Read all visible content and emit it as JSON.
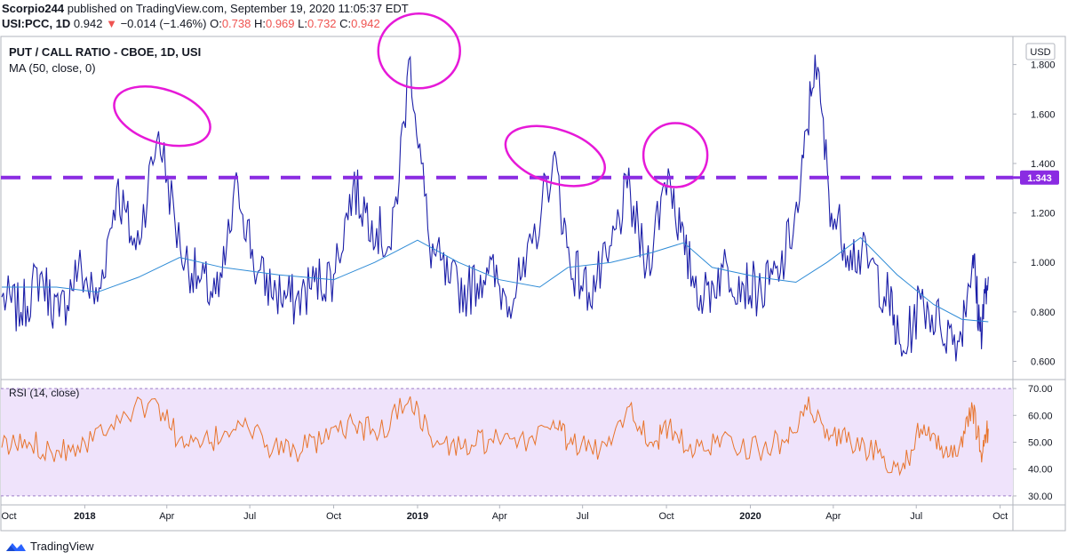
{
  "header": {
    "author": "Scorpio244",
    "published_text": "published on TradingView.com, September 19, 2020 11:05:37 EDT",
    "symbol": "USI:PCC, 1D",
    "last": "0.942",
    "change_arrow": "▼",
    "change": "−0.014 (−1.46%)",
    "o_label": "O:",
    "o_value": "0.738",
    "h_label": "H:",
    "h_value": "0.969",
    "l_label": "L:",
    "l_value": "0.732",
    "c_label": "C:",
    "c_value": "0.942"
  },
  "footer": {
    "brand": "TradingView"
  },
  "colors": {
    "price_line": "#1c1fa8",
    "ma_line": "#2e8bd6",
    "rsi_line": "#e8742c",
    "rsi_band": "#efe3fb",
    "resistance": "#8a2be2",
    "circle": "#e619d8",
    "down": "#ef5350"
  },
  "chart_data": [
    {
      "type": "line",
      "title": "PUT / CALL RATIO - CBOE, 1D, USI",
      "indicator_label": "MA (50, close, 0)",
      "currency_badge": "USD",
      "y_ticks": [
        "1.800",
        "1.600",
        "1.400",
        "1.200",
        "1.000",
        "0.800",
        "0.600"
      ],
      "ylim": [
        0.53,
        1.91
      ],
      "x_ticks": [
        "Oct",
        "2018",
        "Apr",
        "Jul",
        "Oct",
        "2019",
        "Apr",
        "Jul",
        "Oct",
        "2020",
        "Apr",
        "Jul",
        "Oct"
      ],
      "xlim": [
        "2017-10-01",
        "2020-10-15"
      ],
      "resistance_level": 1.343,
      "resistance_label": "1.343",
      "highlighted_peaks": [
        {
          "date": "2018-03-23",
          "value": 1.53
        },
        {
          "date": "2018-12-24",
          "value": 1.83
        },
        {
          "date": "2019-05-30",
          "value": 1.43
        },
        {
          "date": "2019-10-03",
          "value": 1.38
        }
      ],
      "series": [
        {
          "kind": "price",
          "points": [
            [
              "2017-10-02",
              0.86
            ],
            [
              "2017-10-23",
              0.8
            ],
            [
              "2017-11-13",
              0.95
            ],
            [
              "2017-12-04",
              0.78
            ],
            [
              "2017-12-25",
              0.98
            ],
            [
              "2018-01-15",
              0.84
            ],
            [
              "2018-02-05",
              1.3
            ],
            [
              "2018-02-26",
              1.05
            ],
            [
              "2018-03-23",
              1.53
            ],
            [
              "2018-04-16",
              1.05
            ],
            [
              "2018-05-07",
              0.92
            ],
            [
              "2018-05-28",
              0.86
            ],
            [
              "2018-06-18",
              1.32
            ],
            [
              "2018-07-09",
              0.95
            ],
            [
              "2018-07-30",
              0.88
            ],
            [
              "2018-08-20",
              0.84
            ],
            [
              "2018-09-10",
              0.92
            ],
            [
              "2018-10-01",
              0.95
            ],
            [
              "2018-10-22",
              1.3
            ],
            [
              "2018-11-12",
              1.17
            ],
            [
              "2018-12-03",
              1.05
            ],
            [
              "2018-12-24",
              1.83
            ],
            [
              "2019-01-14",
              1.07
            ],
            [
              "2019-02-04",
              0.92
            ],
            [
              "2019-02-25",
              0.88
            ],
            [
              "2019-03-18",
              0.98
            ],
            [
              "2019-04-08",
              0.86
            ],
            [
              "2019-04-29",
              0.94
            ],
            [
              "2019-05-30",
              1.43
            ],
            [
              "2019-06-17",
              1.0
            ],
            [
              "2019-07-08",
              0.88
            ],
            [
              "2019-07-29",
              1.0
            ],
            [
              "2019-08-19",
              1.3
            ],
            [
              "2019-09-09",
              0.98
            ],
            [
              "2019-10-03",
              1.38
            ],
            [
              "2019-10-21",
              1.03
            ],
            [
              "2019-11-11",
              0.85
            ],
            [
              "2019-12-02",
              0.98
            ],
            [
              "2019-12-23",
              0.92
            ],
            [
              "2020-01-13",
              0.88
            ],
            [
              "2020-02-03",
              0.96
            ],
            [
              "2020-02-24",
              1.25
            ],
            [
              "2020-03-12",
              1.84
            ],
            [
              "2020-03-30",
              1.2
            ],
            [
              "2020-04-20",
              1.05
            ],
            [
              "2020-05-11",
              1.0
            ],
            [
              "2020-06-01",
              0.85
            ],
            [
              "2020-06-15",
              0.62
            ],
            [
              "2020-07-06",
              0.85
            ],
            [
              "2020-07-27",
              0.75
            ],
            [
              "2020-08-17",
              0.68
            ],
            [
              "2020-09-01",
              1.03
            ],
            [
              "2020-09-09",
              0.72
            ],
            [
              "2020-09-18",
              0.942
            ]
          ]
        },
        {
          "kind": "ma",
          "name": "MA (50, close, 0)",
          "points": [
            [
              "2017-10-02",
              0.9
            ],
            [
              "2017-12-01",
              0.9
            ],
            [
              "2018-01-15",
              0.88
            ],
            [
              "2018-03-01",
              0.94
            ],
            [
              "2018-04-15",
              1.02
            ],
            [
              "2018-06-01",
              0.98
            ],
            [
              "2018-08-01",
              0.95
            ],
            [
              "2018-10-01",
              0.93
            ],
            [
              "2018-11-15",
              1.0
            ],
            [
              "2019-01-01",
              1.09
            ],
            [
              "2019-02-15",
              1.0
            ],
            [
              "2019-04-01",
              0.93
            ],
            [
              "2019-05-15",
              0.9
            ],
            [
              "2019-06-15",
              0.98
            ],
            [
              "2019-08-01",
              1.0
            ],
            [
              "2019-09-15",
              1.04
            ],
            [
              "2019-10-20",
              1.08
            ],
            [
              "2019-11-20",
              0.98
            ],
            [
              "2020-01-10",
              0.94
            ],
            [
              "2020-02-20",
              0.92
            ],
            [
              "2020-03-25",
              1.0
            ],
            [
              "2020-05-01",
              1.1
            ],
            [
              "2020-06-10",
              0.95
            ],
            [
              "2020-07-20",
              0.83
            ],
            [
              "2020-08-20",
              0.77
            ],
            [
              "2020-09-18",
              0.76
            ]
          ]
        }
      ]
    },
    {
      "type": "line",
      "title": "RSI (14, close)",
      "y_ticks": [
        "70.00",
        "60.00",
        "50.00",
        "40.00",
        "30.00"
      ],
      "ylim": [
        27,
        73
      ],
      "band": [
        30,
        70
      ],
      "series": [
        {
          "kind": "rsi",
          "points": [
            [
              "2017-10-02",
              48
            ],
            [
              "2017-11-01",
              50
            ],
            [
              "2017-12-01",
              47
            ],
            [
              "2018-01-01",
              50
            ],
            [
              "2018-02-05",
              60
            ],
            [
              "2018-03-23",
              64
            ],
            [
              "2018-04-20",
              48
            ],
            [
              "2018-05-20",
              50
            ],
            [
              "2018-06-18",
              58
            ],
            [
              "2018-07-20",
              49
            ],
            [
              "2018-08-20",
              47
            ],
            [
              "2018-09-20",
              50
            ],
            [
              "2018-10-22",
              57
            ],
            [
              "2018-11-20",
              53
            ],
            [
              "2018-12-24",
              67
            ],
            [
              "2019-01-20",
              49
            ],
            [
              "2019-02-20",
              48
            ],
            [
              "2019-03-20",
              51
            ],
            [
              "2019-04-20",
              48
            ],
            [
              "2019-05-30",
              58
            ],
            [
              "2019-06-20",
              49
            ],
            [
              "2019-07-20",
              47
            ],
            [
              "2019-08-19",
              63
            ],
            [
              "2019-09-15",
              50
            ],
            [
              "2019-10-03",
              55
            ],
            [
              "2019-11-01",
              46
            ],
            [
              "2019-12-01",
              52
            ],
            [
              "2020-01-10",
              47
            ],
            [
              "2020-02-10",
              51
            ],
            [
              "2020-03-01",
              64
            ],
            [
              "2020-03-25",
              55
            ],
            [
              "2020-04-20",
              50
            ],
            [
              "2020-05-20",
              46
            ],
            [
              "2020-06-15",
              40
            ],
            [
              "2020-07-06",
              55
            ],
            [
              "2020-07-27",
              47
            ],
            [
              "2020-08-17",
              48
            ],
            [
              "2020-09-01",
              62
            ],
            [
              "2020-09-10",
              46
            ],
            [
              "2020-09-18",
              55
            ]
          ]
        }
      ]
    }
  ]
}
